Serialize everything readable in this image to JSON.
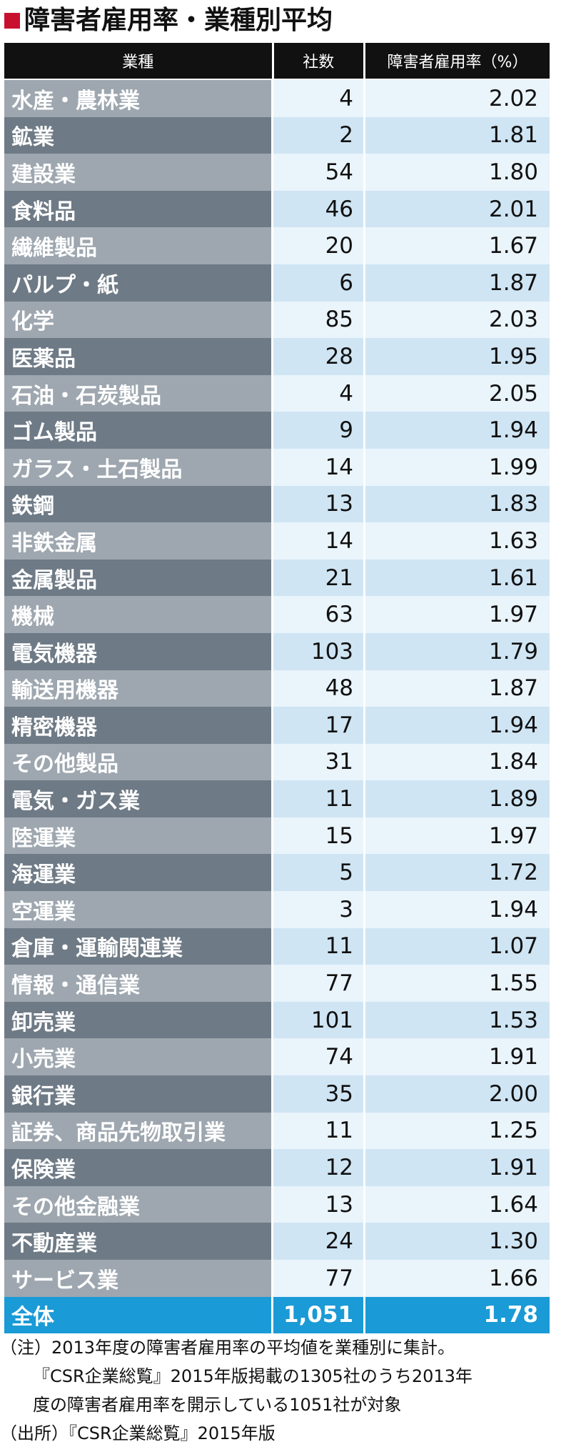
{
  "title": "障害者雇用率・業種別平均",
  "colors": {
    "accent": "#c8102e",
    "header_bg": "#111111",
    "name_dark": "#6e7a85",
    "name_light": "#9ea7af",
    "value_dark": "#cfe5f4",
    "value_light": "#eaf4fb",
    "total_bg": "#1a9ad6"
  },
  "chart_data": {
    "type": "table",
    "columns": [
      "業種",
      "社数",
      "障害者雇用率（%）"
    ],
    "rows": [
      {
        "industry": "水産・農林業",
        "count": "4",
        "rate": "2.02"
      },
      {
        "industry": "鉱業",
        "count": "2",
        "rate": "1.81"
      },
      {
        "industry": "建設業",
        "count": "54",
        "rate": "1.80"
      },
      {
        "industry": "食料品",
        "count": "46",
        "rate": "2.01"
      },
      {
        "industry": "繊維製品",
        "count": "20",
        "rate": "1.67"
      },
      {
        "industry": "パルプ・紙",
        "count": "6",
        "rate": "1.87"
      },
      {
        "industry": "化学",
        "count": "85",
        "rate": "2.03"
      },
      {
        "industry": "医薬品",
        "count": "28",
        "rate": "1.95"
      },
      {
        "industry": "石油・石炭製品",
        "count": "4",
        "rate": "2.05"
      },
      {
        "industry": "ゴム製品",
        "count": "9",
        "rate": "1.94"
      },
      {
        "industry": "ガラス・土石製品",
        "count": "14",
        "rate": "1.99"
      },
      {
        "industry": "鉄鋼",
        "count": "13",
        "rate": "1.83"
      },
      {
        "industry": "非鉄金属",
        "count": "14",
        "rate": "1.63"
      },
      {
        "industry": "金属製品",
        "count": "21",
        "rate": "1.61"
      },
      {
        "industry": "機械",
        "count": "63",
        "rate": "1.97"
      },
      {
        "industry": "電気機器",
        "count": "103",
        "rate": "1.79"
      },
      {
        "industry": "輸送用機器",
        "count": "48",
        "rate": "1.87"
      },
      {
        "industry": "精密機器",
        "count": "17",
        "rate": "1.94"
      },
      {
        "industry": "その他製品",
        "count": "31",
        "rate": "1.84"
      },
      {
        "industry": "電気・ガス業",
        "count": "11",
        "rate": "1.89"
      },
      {
        "industry": "陸運業",
        "count": "15",
        "rate": "1.97"
      },
      {
        "industry": "海運業",
        "count": "5",
        "rate": "1.72"
      },
      {
        "industry": "空運業",
        "count": "3",
        "rate": "1.94"
      },
      {
        "industry": "倉庫・運輸関連業",
        "count": "11",
        "rate": "1.07"
      },
      {
        "industry": "情報・通信業",
        "count": "77",
        "rate": "1.55"
      },
      {
        "industry": "卸売業",
        "count": "101",
        "rate": "1.53"
      },
      {
        "industry": "小売業",
        "count": "74",
        "rate": "1.91"
      },
      {
        "industry": "銀行業",
        "count": "35",
        "rate": "2.00"
      },
      {
        "industry": "証券、商品先物取引業",
        "count": "11",
        "rate": "1.25"
      },
      {
        "industry": "保険業",
        "count": "12",
        "rate": "1.91"
      },
      {
        "industry": "その他金融業",
        "count": "13",
        "rate": "1.64"
      },
      {
        "industry": "不動産業",
        "count": "24",
        "rate": "1.30"
      },
      {
        "industry": "サービス業",
        "count": "77",
        "rate": "1.66"
      }
    ],
    "total": {
      "industry": "全体",
      "count": "1,051",
      "rate": "1.78"
    }
  },
  "notes": [
    "（注）2013年度の障害者雇用率の平均値を業種別に集計。",
    "『CSR企業総覧』2015年版掲載の1305社のうち2013年",
    "度の障害者雇用率を開示している1051社が対象",
    "（出所）『CSR企業総覧』2015年版"
  ]
}
